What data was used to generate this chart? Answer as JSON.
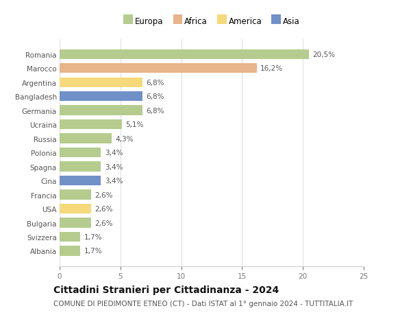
{
  "countries": [
    "Romania",
    "Marocco",
    "Argentina",
    "Bangladesh",
    "Germania",
    "Ucraina",
    "Russia",
    "Polonia",
    "Spagna",
    "Cina",
    "Francia",
    "USA",
    "Bulgaria",
    "Svizzera",
    "Albania"
  ],
  "values": [
    20.5,
    16.2,
    6.8,
    6.8,
    6.8,
    5.1,
    4.3,
    3.4,
    3.4,
    3.4,
    2.6,
    2.6,
    2.6,
    1.7,
    1.7
  ],
  "labels": [
    "20,5%",
    "16,2%",
    "6,8%",
    "6,8%",
    "6,8%",
    "5,1%",
    "4,3%",
    "3,4%",
    "3,4%",
    "3,4%",
    "2,6%",
    "2,6%",
    "2,6%",
    "1,7%",
    "1,7%"
  ],
  "colors": [
    "#b5cc8e",
    "#e8b48a",
    "#f5d97a",
    "#7090c8",
    "#b5cc8e",
    "#b5cc8e",
    "#b5cc8e",
    "#b5cc8e",
    "#b5cc8e",
    "#7090c8",
    "#b5cc8e",
    "#f5d97a",
    "#b5cc8e",
    "#b5cc8e",
    "#b5cc8e"
  ],
  "legend_labels": [
    "Europa",
    "Africa",
    "America",
    "Asia"
  ],
  "legend_colors": [
    "#b5cc8e",
    "#e8b48a",
    "#f5d97a",
    "#7090c8"
  ],
  "title": "Cittadini Stranieri per Cittadinanza - 2024",
  "subtitle": "COMUNE DI PIEDIMONTE ETNEO (CT) - Dati ISTAT al 1° gennaio 2024 - TUTTITALIA.IT",
  "xlim": [
    0,
    25
  ],
  "xticks": [
    0,
    5,
    10,
    15,
    20,
    25
  ],
  "background_color": "#ffffff",
  "grid_color": "#e0e0e0",
  "bar_height": 0.7,
  "label_fontsize": 7.5,
  "title_fontsize": 10,
  "subtitle_fontsize": 7.5,
  "tick_fontsize": 7.5,
  "legend_fontsize": 8.5
}
